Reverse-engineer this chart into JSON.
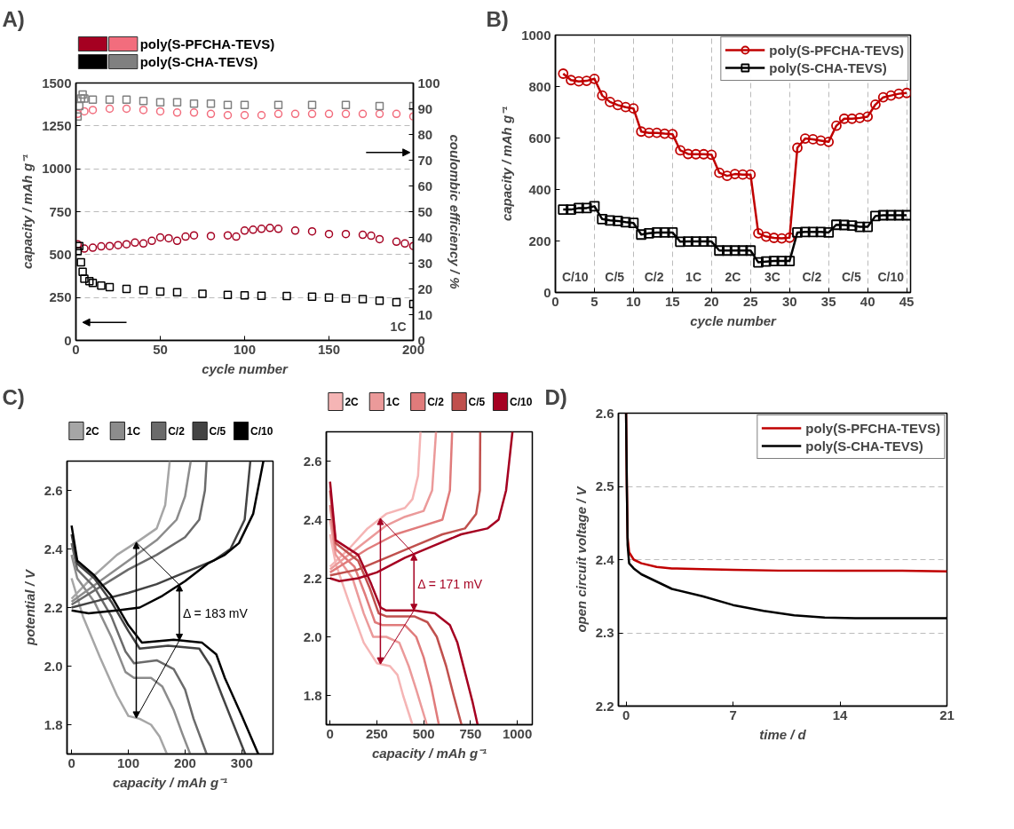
{
  "chart_data": [
    {
      "type": "scatter",
      "title": "A)",
      "xlabel": "cycle number",
      "ylabel": "capacity / mAh g⁻¹",
      "y2label": "coulombic efficiency / %",
      "xlim": [
        0,
        200
      ],
      "xticks": [
        0,
        50,
        100,
        150,
        200
      ],
      "ylim": [
        0,
        1500
      ],
      "yticks": [
        0,
        250,
        500,
        750,
        1000,
        1250,
        1500
      ],
      "y2lim": [
        0,
        100
      ],
      "y2ticks": [
        0,
        10,
        20,
        30,
        40,
        50,
        60,
        70,
        80,
        90,
        100
      ],
      "grid": "y",
      "legend": "top",
      "annotations": [
        "1C"
      ],
      "series": [
        {
          "color": "#a50021",
          "marker": "circle",
          "x": [
            1,
            5,
            10,
            15,
            20,
            25,
            30,
            35,
            40,
            45,
            50,
            55,
            60,
            65,
            70,
            80,
            90,
            95,
            100,
            105,
            110,
            115,
            120,
            130,
            140,
            150,
            160,
            170,
            175,
            180,
            190,
            195,
            200
          ],
          "values": [
            560,
            535,
            540,
            548,
            550,
            555,
            560,
            570,
            565,
            580,
            600,
            595,
            580,
            605,
            612,
            608,
            612,
            605,
            640,
            645,
            650,
            655,
            650,
            640,
            635,
            620,
            620,
            615,
            610,
            590,
            575,
            565,
            550
          ]
        },
        {
          "name": "poly(S-PFCHA-TEVS)",
          "color": "#f26d7d",
          "marker": "circle",
          "axis": "y2",
          "x": [
            1,
            5,
            10,
            20,
            30,
            40,
            50,
            60,
            70,
            80,
            90,
            100,
            110,
            120,
            130,
            140,
            150,
            160,
            170,
            180,
            190,
            200
          ],
          "values": [
            88,
            89,
            89.5,
            90,
            90,
            89.5,
            89,
            88.5,
            88.5,
            88,
            87.5,
            87.5,
            87.5,
            88,
            88,
            88,
            88,
            88,
            88,
            88,
            88,
            87
          ]
        },
        {
          "color": "#000000",
          "marker": "square",
          "x": [
            1,
            2,
            3,
            4,
            5,
            8,
            10,
            15,
            20,
            30,
            40,
            50,
            60,
            75,
            90,
            100,
            110,
            125,
            140,
            150,
            160,
            170,
            180,
            190,
            200
          ],
          "values": [
            520,
            550,
            455,
            400,
            360,
            345,
            335,
            320,
            310,
            300,
            292,
            285,
            280,
            272,
            265,
            262,
            260,
            258,
            255,
            250,
            245,
            240,
            232,
            222,
            212
          ]
        },
        {
          "name": "poly(S-CHA-TEVS)",
          "color": "#808080",
          "marker": "square",
          "axis": "y2",
          "x": [
            1,
            2,
            3,
            4,
            5,
            10,
            20,
            30,
            40,
            50,
            60,
            70,
            80,
            90,
            100,
            120,
            140,
            160,
            180,
            200
          ],
          "values": [
            87,
            91,
            94,
            95.5,
            94,
            93.5,
            93.5,
            93.5,
            93,
            92.5,
            92.5,
            92,
            92,
            91.5,
            91.5,
            91.5,
            91.5,
            91.5,
            91,
            91
          ]
        }
      ]
    },
    {
      "type": "line",
      "title": "B)",
      "xlabel": "cycle number",
      "ylabel": "capacity / mAh g⁻¹",
      "xlim": [
        0,
        45.5
      ],
      "xticks": [
        0,
        5,
        10,
        15,
        20,
        25,
        30,
        35,
        40,
        45
      ],
      "ylim": [
        0,
        1000
      ],
      "yticks": [
        0,
        200,
        400,
        600,
        800,
        1000
      ],
      "grid": "x",
      "legend": "top right",
      "x": [
        1,
        2,
        3,
        4,
        5,
        6,
        7,
        8,
        9,
        10,
        11,
        12,
        13,
        14,
        15,
        16,
        17,
        18,
        19,
        20,
        21,
        22,
        23,
        24,
        25,
        26,
        27,
        28,
        29,
        30,
        31,
        32,
        33,
        34,
        35,
        36,
        37,
        38,
        39,
        40,
        41,
        42,
        43,
        44,
        45
      ],
      "annotations": [
        "C/10",
        "C/5",
        "C/2",
        "1C",
        "2C",
        "3C",
        "C/2",
        "C/5",
        "C/10"
      ],
      "series": [
        {
          "name": "poly(S-PFCHA-TEVS)",
          "color": "#c00000",
          "marker": "circle",
          "values": [
            850,
            825,
            820,
            822,
            830,
            765,
            740,
            728,
            720,
            715,
            625,
            620,
            620,
            617,
            615,
            552,
            538,
            537,
            537,
            535,
            465,
            453,
            460,
            458,
            458,
            230,
            217,
            212,
            210,
            213,
            562,
            598,
            595,
            590,
            585,
            648,
            675,
            675,
            678,
            683,
            730,
            758,
            765,
            772,
            775
          ]
        },
        {
          "name": "poly(S-CHA-TEVS)",
          "color": "#000000",
          "marker": "square",
          "values": [
            322,
            322,
            328,
            328,
            335,
            285,
            280,
            278,
            273,
            270,
            225,
            230,
            233,
            233,
            233,
            197,
            198,
            198,
            198,
            198,
            163,
            163,
            163,
            163,
            163,
            117,
            120,
            122,
            122,
            122,
            233,
            235,
            235,
            235,
            233,
            263,
            262,
            260,
            255,
            255,
            297,
            300,
            300,
            300,
            300
          ]
        }
      ]
    },
    {
      "type": "line",
      "title": "C)",
      "xlabel": "capacity / mAh g⁻¹",
      "ylabel": "potential / V",
      "xlim": [
        -8,
        355
      ],
      "xticks": [
        0,
        100,
        200,
        300
      ],
      "ylim": [
        1.7,
        2.7
      ],
      "yticks": [
        1.8,
        {
          "value": 2,
          "label": "2.0"
        },
        2.2,
        2.4,
        2.6
      ],
      "legend": "top",
      "annotations": [
        {
          "text": "Δ = 183 mV",
          "x": 190,
          "y": 2.18
        }
      ],
      "series": [
        {
          "name": "2C",
          "color": "#a6a6a6",
          "x": [
            0,
            20,
            50,
            80,
            100,
            120,
            140,
            155,
            168,
            null,
            0,
            40,
            80,
            120,
            150,
            165,
            173
          ],
          "values": [
            2.3,
            2.17,
            2.03,
            1.9,
            1.83,
            1.82,
            1.8,
            1.76,
            1.7,
            null,
            2.23,
            2.31,
            2.38,
            2.43,
            2.47,
            2.55,
            2.7
          ]
        },
        {
          "name": "1C",
          "color": "#8c8c8c",
          "x": [
            0,
            10,
            40,
            70,
            95,
            110,
            140,
            160,
            180,
            195,
            209,
            null,
            0,
            50,
            100,
            150,
            185,
            200,
            210
          ],
          "values": [
            2.38,
            2.3,
            2.22,
            2.1,
            1.98,
            1.96,
            1.96,
            1.93,
            1.85,
            1.77,
            1.7,
            null,
            2.22,
            2.29,
            2.36,
            2.43,
            2.5,
            2.58,
            2.7
          ]
        },
        {
          "name": "C/2",
          "color": "#6b6b6b",
          "x": [
            0,
            10,
            40,
            70,
            95,
            110,
            150,
            180,
            200,
            215,
            238,
            null,
            0,
            50,
            100,
            150,
            200,
            225,
            235,
            238
          ],
          "values": [
            2.42,
            2.33,
            2.27,
            2.17,
            2.05,
            2.01,
            2.02,
            1.99,
            1.92,
            1.82,
            1.7,
            null,
            2.21,
            2.27,
            2.33,
            2.38,
            2.44,
            2.5,
            2.6,
            2.7
          ]
        },
        {
          "name": "C/5",
          "color": "#434343",
          "x": [
            0,
            10,
            40,
            70,
            100,
            120,
            170,
            225,
            245,
            265,
            306,
            null,
            0,
            40,
            100,
            150,
            200,
            250,
            280,
            305,
            315
          ],
          "values": [
            2.45,
            2.35,
            2.3,
            2.22,
            2.12,
            2.06,
            2.07,
            2.06,
            2.0,
            1.9,
            1.7,
            null,
            2.2,
            2.22,
            2.25,
            2.28,
            2.32,
            2.36,
            2.4,
            2.5,
            2.7
          ]
        },
        {
          "name": "C/10",
          "color": "#000000",
          "x": [
            0,
            10,
            40,
            70,
            100,
            124,
            180,
            230,
            255,
            270,
            300,
            329,
            null,
            0,
            30,
            80,
            120,
            160,
            200,
            240,
            270,
            295,
            320,
            338
          ],
          "values": [
            2.48,
            2.36,
            2.31,
            2.24,
            2.14,
            2.08,
            2.09,
            2.08,
            2.04,
            1.96,
            1.83,
            1.7,
            null,
            2.19,
            2.18,
            2.19,
            2.2,
            2.24,
            2.29,
            2.35,
            2.38,
            2.42,
            2.52,
            2.7
          ]
        }
      ]
    },
    {
      "type": "line",
      "xlabel": "capacity / mAh g⁻¹",
      "xlim": [
        -20,
        1080
      ],
      "xticks": [
        0,
        250,
        500,
        750,
        1000
      ],
      "ylim": [
        1.7,
        2.7
      ],
      "yticks": [
        1.8,
        {
          "value": 2,
          "label": "2.0"
        },
        2.2,
        2.4,
        2.6
      ],
      "legend": "top",
      "annotations": [
        {
          "text": "Δ = 171 mV",
          "x": 448,
          "y": 2.18
        }
      ],
      "series": [
        {
          "name": "2C",
          "color": "#f5b5b5",
          "x": [
            0,
            30,
            100,
            180,
            250,
            320,
            360,
            390,
            440,
            null,
            0,
            100,
            200,
            300,
            400,
            440,
            470,
            483
          ],
          "values": [
            2.35,
            2.25,
            2.12,
            1.98,
            1.91,
            1.9,
            1.87,
            1.8,
            1.7,
            null,
            2.24,
            2.3,
            2.37,
            2.42,
            2.44,
            2.47,
            2.55,
            2.7
          ]
        },
        {
          "name": "1C",
          "color": "#eb9a9a",
          "x": [
            0,
            30,
            120,
            180,
            230,
            300,
            370,
            420,
            460,
            517,
            null,
            0,
            100,
            200,
            300,
            400,
            500,
            545,
            566
          ],
          "values": [
            2.4,
            2.28,
            2.2,
            2.08,
            2.0,
            2.0,
            1.98,
            1.9,
            1.82,
            1.7,
            null,
            2.23,
            2.28,
            2.33,
            2.38,
            2.41,
            2.43,
            2.5,
            2.7
          ]
        },
        {
          "name": "C/2",
          "color": "#e07b7b",
          "x": [
            0,
            30,
            130,
            190,
            240,
            280,
            400,
            460,
            500,
            540,
            581,
            null,
            0,
            100,
            200,
            350,
            500,
            600,
            640,
            652
          ],
          "values": [
            2.45,
            2.3,
            2.24,
            2.14,
            2.05,
            2.04,
            2.04,
            2.0,
            1.93,
            1.83,
            1.7,
            null,
            2.22,
            2.26,
            2.3,
            2.35,
            2.38,
            2.4,
            2.5,
            2.7
          ]
        },
        {
          "name": "C/5",
          "color": "#c0504d",
          "x": [
            0,
            30,
            150,
            210,
            260,
            300,
            450,
            520,
            570,
            620,
            660,
            702,
            null,
            0,
            150,
            300,
            450,
            600,
            720,
            780,
            800,
            802
          ],
          "values": [
            2.5,
            2.32,
            2.26,
            2.17,
            2.08,
            2.07,
            2.07,
            2.05,
            2.0,
            1.9,
            1.8,
            1.7,
            null,
            2.21,
            2.23,
            2.27,
            2.31,
            2.35,
            2.37,
            2.42,
            2.5,
            2.7
          ]
        },
        {
          "name": "C/10",
          "color": "#a50021",
          "x": [
            0,
            30,
            150,
            220,
            270,
            300,
            450,
            560,
            640,
            680,
            720,
            760,
            788,
            null,
            0,
            50,
            150,
            250,
            400,
            550,
            700,
            840,
            900,
            940,
            974
          ],
          "values": [
            2.53,
            2.33,
            2.28,
            2.18,
            2.1,
            2.09,
            2.09,
            2.08,
            2.04,
            1.98,
            1.88,
            1.78,
            1.7,
            null,
            2.2,
            2.19,
            2.2,
            2.22,
            2.27,
            2.31,
            2.35,
            2.37,
            2.4,
            2.5,
            2.7
          ]
        }
      ]
    },
    {
      "type": "line",
      "title": "D)",
      "xlabel": "time / d",
      "ylabel": "open circuit voltage / V",
      "xlim": [
        -0.5,
        21
      ],
      "xticks": [
        0,
        7,
        14,
        21
      ],
      "ylim": [
        2.2,
        2.6
      ],
      "yticks": [
        2.2,
        2.3,
        2.4,
        2.5,
        2.6
      ],
      "grid": "y",
      "legend": "top right",
      "series": [
        {
          "name": "poly(S-PFCHA-TEVS)",
          "color": "#c00000",
          "x": [
            0,
            0.05,
            0.1,
            0.2,
            0.5,
            1,
            2,
            3,
            5,
            7,
            10,
            14,
            18,
            21
          ],
          "values": [
            2.6,
            2.5,
            2.43,
            2.41,
            2.4,
            2.395,
            2.39,
            2.388,
            2.387,
            2.386,
            2.385,
            2.385,
            2.385,
            2.384
          ]
        },
        {
          "name": "poly(S-CHA-TEVS)",
          "color": "#000000",
          "x": [
            0,
            0.05,
            0.1,
            0.2,
            0.5,
            1,
            2,
            3,
            5,
            7,
            9,
            11,
            13,
            15,
            18,
            21
          ],
          "values": [
            2.6,
            2.5,
            2.42,
            2.395,
            2.388,
            2.38,
            2.37,
            2.36,
            2.35,
            2.338,
            2.33,
            2.324,
            2.321,
            2.32,
            2.32,
            2.32
          ]
        }
      ]
    }
  ]
}
